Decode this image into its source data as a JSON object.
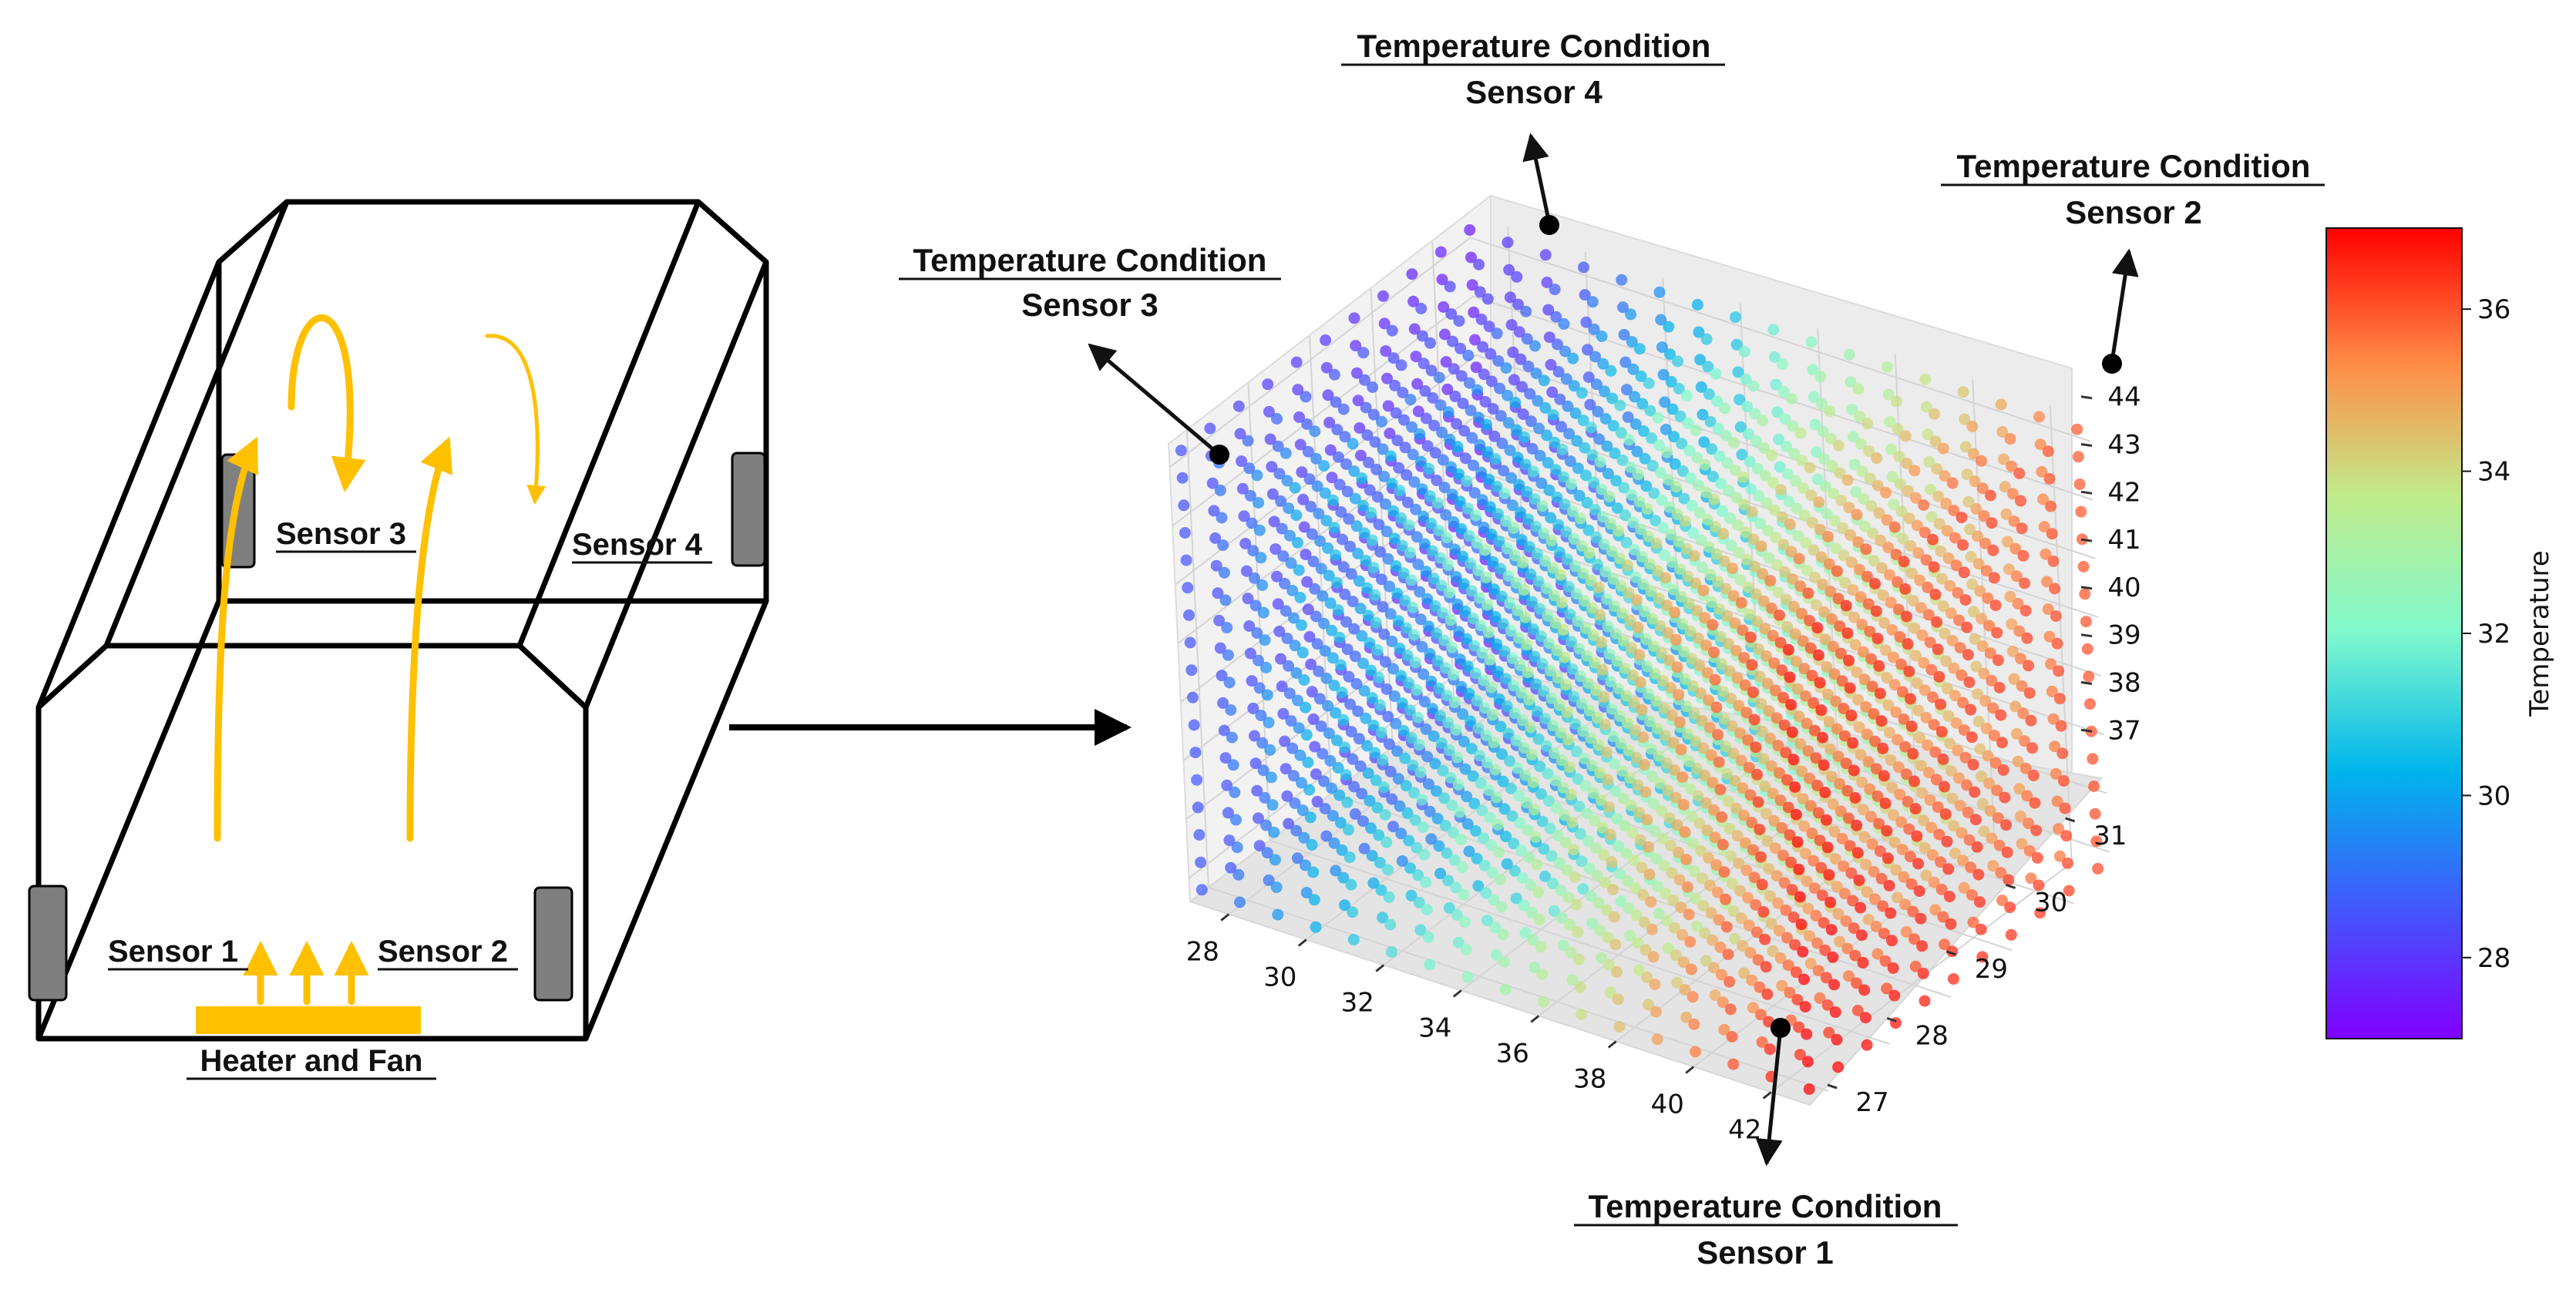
{
  "enclosure": {
    "sensor_labels": [
      "Sensor 1",
      "Sensor 2",
      "Sensor 3",
      "Sensor 4"
    ],
    "heater_label": "Heater and Fan",
    "airflow_color": "#ffc000",
    "sensor_color": "#7f7f7f"
  },
  "callouts": {
    "sensor1": {
      "title": "Temperature Condition",
      "sub": "Sensor 1"
    },
    "sensor2": {
      "title": "Temperature Condition",
      "sub": "Sensor 2"
    },
    "sensor3": {
      "title": "Temperature Condition",
      "sub": "Sensor 3"
    },
    "sensor4": {
      "title": "Temperature Condition",
      "sub": "Sensor 4"
    }
  },
  "chart_data": {
    "type": "scatter3d",
    "x_ticks": [
      28,
      30,
      32,
      34,
      36,
      38,
      40,
      42
    ],
    "y_ticks": [
      27,
      28,
      29,
      30,
      31
    ],
    "z_ticks": [
      37,
      38,
      39,
      40,
      41,
      42,
      43,
      44
    ],
    "xlim": [
      27,
      43
    ],
    "ylim": [
      26.7,
      31.6
    ],
    "zlim": [
      36.6,
      44.4
    ],
    "grid": true,
    "color_scale": "rainbow",
    "colorbar": {
      "label": "Temperature",
      "ticks": [
        28,
        30,
        32,
        34,
        36
      ],
      "range": [
        27,
        37
      ]
    }
  }
}
